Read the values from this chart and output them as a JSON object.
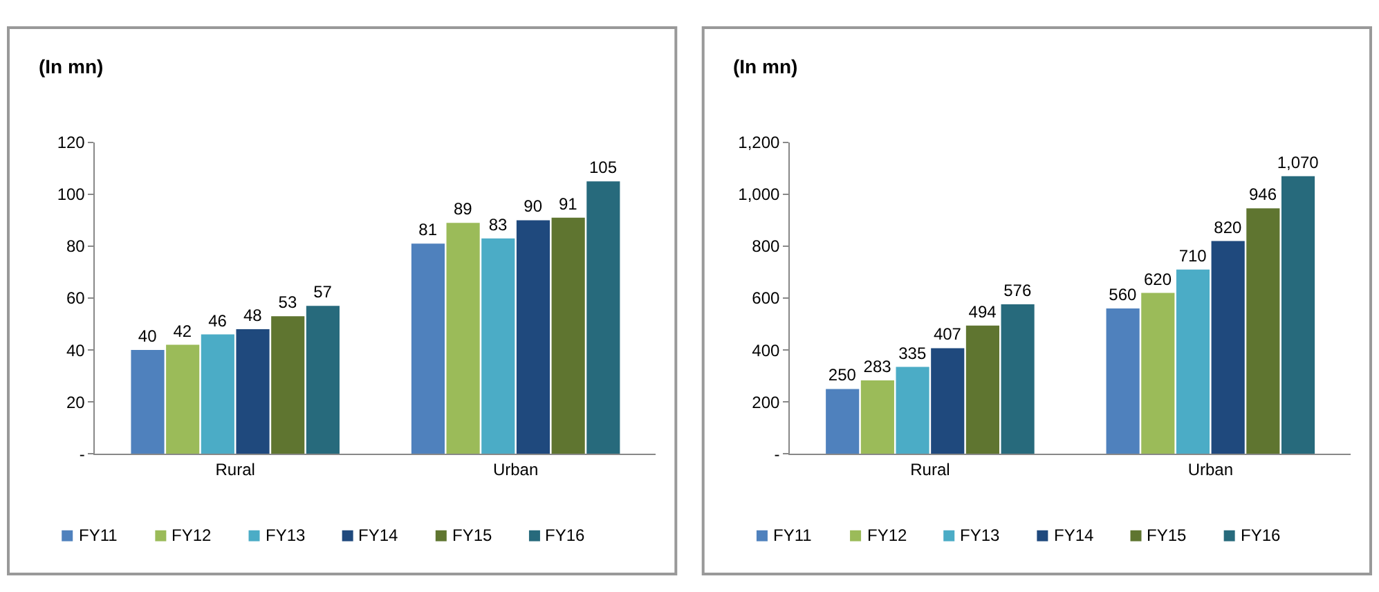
{
  "chart_data": [
    {
      "type": "bar",
      "title": "(In mn)",
      "categories": [
        "Rural",
        "Urban"
      ],
      "series": [
        {
          "name": "FY11",
          "color": "#4f81bd",
          "values": [
            40,
            81
          ]
        },
        {
          "name": "FY12",
          "color": "#9bbb59",
          "values": [
            42,
            89
          ]
        },
        {
          "name": "FY13",
          "color": "#4bacc6",
          "values": [
            46,
            83
          ]
        },
        {
          "name": "FY14",
          "color": "#1f497d",
          "values": [
            48,
            90
          ]
        },
        {
          "name": "FY15",
          "color": "#5f7530",
          "values": [
            53,
            91
          ]
        },
        {
          "name": "FY16",
          "color": "#276a7c",
          "values": [
            57,
            105
          ]
        }
      ],
      "ylim": [
        0,
        120
      ],
      "yticks": [
        {
          "value": 0,
          "label": "-"
        },
        20,
        40,
        60,
        80,
        100,
        120
      ],
      "data_labels": true,
      "legend": "bottom"
    },
    {
      "type": "bar",
      "title": "(In mn)",
      "categories": [
        "Rural",
        "Urban"
      ],
      "series": [
        {
          "name": "FY11",
          "color": "#4f81bd",
          "values": [
            250,
            560
          ],
          "value_labels": [
            "250",
            "560"
          ]
        },
        {
          "name": "FY12",
          "color": "#9bbb59",
          "values": [
            283,
            620
          ],
          "value_labels": [
            "283",
            "620"
          ]
        },
        {
          "name": "FY13",
          "color": "#4bacc6",
          "values": [
            335,
            710
          ],
          "value_labels": [
            "335",
            "710"
          ]
        },
        {
          "name": "FY14",
          "color": "#1f497d",
          "values": [
            407,
            820
          ],
          "value_labels": [
            "407",
            "820"
          ]
        },
        {
          "name": "FY15",
          "color": "#5f7530",
          "values": [
            494,
            946
          ],
          "value_labels": [
            "494",
            "946"
          ]
        },
        {
          "name": "FY16",
          "color": "#276a7c",
          "values": [
            576,
            1070
          ],
          "value_labels": [
            "576",
            "1,070"
          ]
        }
      ],
      "ylim": [
        0,
        1200
      ],
      "yticks": [
        {
          "value": 0,
          "label": "-"
        },
        {
          "value": 200,
          "label": "200"
        },
        {
          "value": 400,
          "label": "400"
        },
        {
          "value": 600,
          "label": "600"
        },
        {
          "value": 800,
          "label": "800"
        },
        {
          "value": 1000,
          "label": "1,000"
        },
        {
          "value": 1200,
          "label": "1,200"
        }
      ],
      "legend": "bottom"
    }
  ]
}
